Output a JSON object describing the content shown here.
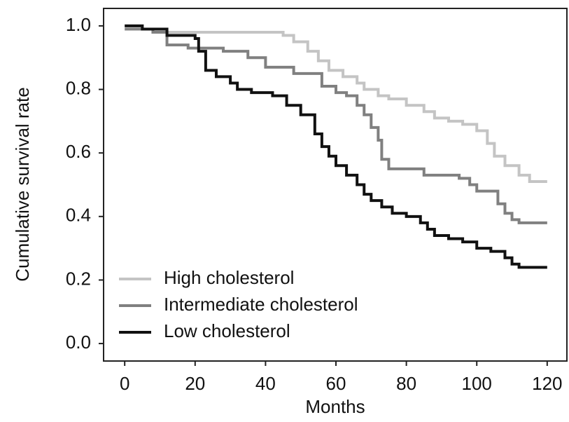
{
  "chart_data": {
    "type": "line",
    "step": true,
    "x_label": "Months",
    "y_label": "Cumulative survival rate",
    "xlim": [
      -6,
      125.6
    ],
    "ylim": [
      -0.055,
      1.055
    ],
    "xticks": [
      0,
      20,
      40,
      60,
      80,
      100,
      120
    ],
    "yticks": [
      {
        "value": 0,
        "label": "0.0"
      },
      0.2,
      0.4,
      0.6,
      0.8,
      {
        "value": 1,
        "label": "1.0"
      }
    ],
    "legend": "lower left",
    "series": [
      {
        "name": "High cholesterol",
        "color": "#c4c4c4",
        "x": [
          0,
          5,
          12,
          40,
          45,
          48,
          52,
          55,
          58,
          62,
          66,
          68,
          72,
          75,
          80,
          85,
          88,
          92,
          96,
          100,
          103,
          105,
          108,
          112,
          115,
          120
        ],
        "values": [
          1.0,
          0.99,
          0.98,
          0.98,
          0.97,
          0.95,
          0.92,
          0.89,
          0.86,
          0.84,
          0.82,
          0.8,
          0.78,
          0.77,
          0.75,
          0.73,
          0.71,
          0.7,
          0.69,
          0.67,
          0.63,
          0.59,
          0.56,
          0.53,
          0.51,
          0.51
        ]
      },
      {
        "name": "Intermediate cholesterol",
        "color": "#808080",
        "x": [
          0,
          8,
          12,
          18,
          28,
          35,
          40,
          48,
          56,
          60,
          63,
          66,
          68,
          70,
          72,
          73,
          75,
          85,
          95,
          98,
          100,
          106,
          108,
          110,
          112,
          120
        ],
        "values": [
          0.99,
          0.98,
          0.94,
          0.93,
          0.92,
          0.9,
          0.87,
          0.85,
          0.81,
          0.79,
          0.78,
          0.75,
          0.72,
          0.68,
          0.64,
          0.58,
          0.55,
          0.53,
          0.52,
          0.5,
          0.48,
          0.44,
          0.41,
          0.39,
          0.38,
          0.38
        ]
      },
      {
        "name": "Low cholesterol",
        "color": "#111111",
        "x": [
          0,
          5,
          12,
          20,
          21,
          23,
          26,
          30,
          32,
          36,
          42,
          46,
          50,
          54,
          56,
          58,
          60,
          63,
          66,
          68,
          70,
          73,
          76,
          80,
          84,
          86,
          88,
          92,
          96,
          100,
          104,
          108,
          110,
          112,
          120
        ],
        "values": [
          1.0,
          0.99,
          0.97,
          0.96,
          0.92,
          0.86,
          0.84,
          0.82,
          0.8,
          0.79,
          0.78,
          0.75,
          0.72,
          0.66,
          0.62,
          0.59,
          0.56,
          0.53,
          0.5,
          0.47,
          0.45,
          0.43,
          0.41,
          0.4,
          0.38,
          0.36,
          0.34,
          0.33,
          0.32,
          0.3,
          0.29,
          0.27,
          0.25,
          0.24,
          0.24
        ]
      }
    ]
  }
}
